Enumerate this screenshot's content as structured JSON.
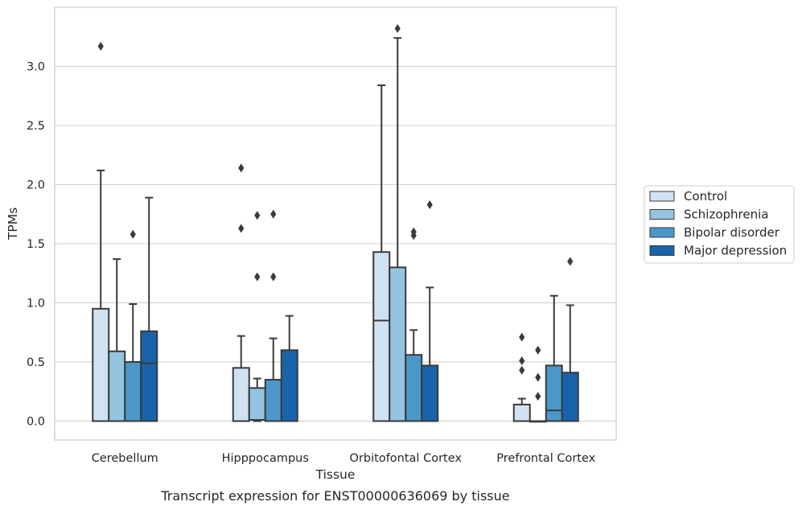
{
  "chart_data": {
    "type": "box",
    "xlabel": "Tissue",
    "ylabel": "TPMs",
    "caption": "Transcript expression for ENST00000636069 by tissue",
    "ylim": [
      -0.16,
      3.5
    ],
    "yticks": [
      "0.0",
      "0.5",
      "1.0",
      "1.5",
      "2.0",
      "2.5",
      "3.0"
    ],
    "grid": "horizontal",
    "legend_position": "right",
    "categories": [
      "Cerebellum",
      "Hipppocampus",
      "Orbitofontal Cortex",
      "Prefrontal Cortex"
    ],
    "series": [
      {
        "name": "Control",
        "color": "#d0e1f2",
        "boxes": [
          {
            "q1": 0.0,
            "median": 0.0,
            "q3": 0.95,
            "whisker_low": 0.0,
            "whisker_high": 2.12,
            "outliers": [
              3.17
            ]
          },
          {
            "q1": 0.0,
            "median": 0.0,
            "q3": 0.45,
            "whisker_low": 0.0,
            "whisker_high": 0.72,
            "outliers": [
              1.63,
              2.14
            ]
          },
          {
            "q1": 0.0,
            "median": 0.85,
            "q3": 1.43,
            "whisker_low": 0.0,
            "whisker_high": 2.84,
            "outliers": []
          },
          {
            "q1": 0.0,
            "median": 0.0,
            "q3": 0.14,
            "whisker_low": 0.0,
            "whisker_high": 0.19,
            "outliers": [
              0.43,
              0.51,
              0.71
            ]
          }
        ]
      },
      {
        "name": "Schizophrenia",
        "color": "#94c4df",
        "boxes": [
          {
            "q1": 0.0,
            "median": 0.0,
            "q3": 0.59,
            "whisker_low": 0.0,
            "whisker_high": 1.37,
            "outliers": []
          },
          {
            "q1": 0.01,
            "median": 0.01,
            "q3": 0.28,
            "whisker_low": 0.0,
            "whisker_high": 0.36,
            "outliers": [
              1.22,
              1.74
            ]
          },
          {
            "q1": 0.0,
            "median": 0.0,
            "q3": 1.3,
            "whisker_low": 0.0,
            "whisker_high": 3.24,
            "outliers": [
              3.32
            ]
          },
          {
            "q1": 0.0,
            "median": 0.0,
            "q3": 0.0,
            "whisker_low": 0.0,
            "whisker_high": 0.0,
            "outliers": [
              0.21,
              0.37,
              0.6
            ]
          }
        ]
      },
      {
        "name": "Bipolar disorder",
        "color": "#4a98c9",
        "boxes": [
          {
            "q1": 0.0,
            "median": 0.0,
            "q3": 0.5,
            "whisker_low": 0.0,
            "whisker_high": 0.99,
            "outliers": [
              1.58
            ]
          },
          {
            "q1": 0.0,
            "median": 0.0,
            "q3": 0.35,
            "whisker_low": 0.0,
            "whisker_high": 0.7,
            "outliers": [
              1.22,
              1.75
            ]
          },
          {
            "q1": 0.0,
            "median": 0.0,
            "q3": 0.56,
            "whisker_low": 0.0,
            "whisker_high": 0.77,
            "outliers": [
              1.57,
              1.6
            ]
          },
          {
            "q1": 0.0,
            "median": 0.09,
            "q3": 0.47,
            "whisker_low": 0.0,
            "whisker_high": 1.06,
            "outliers": []
          }
        ]
      },
      {
        "name": "Major depression",
        "color": "#1764ab",
        "boxes": [
          {
            "q1": 0.0,
            "median": 0.49,
            "q3": 0.76,
            "whisker_low": 0.0,
            "whisker_high": 1.89,
            "outliers": []
          },
          {
            "q1": 0.0,
            "median": 0.0,
            "q3": 0.6,
            "whisker_low": 0.0,
            "whisker_high": 0.89,
            "outliers": []
          },
          {
            "q1": 0.0,
            "median": 0.0,
            "q3": 0.47,
            "whisker_low": 0.0,
            "whisker_high": 1.13,
            "outliers": [
              1.83
            ]
          },
          {
            "q1": 0.0,
            "median": 0.0,
            "q3": 0.41,
            "whisker_low": 0.0,
            "whisker_high": 0.98,
            "outliers": [
              1.35
            ]
          }
        ]
      }
    ]
  }
}
